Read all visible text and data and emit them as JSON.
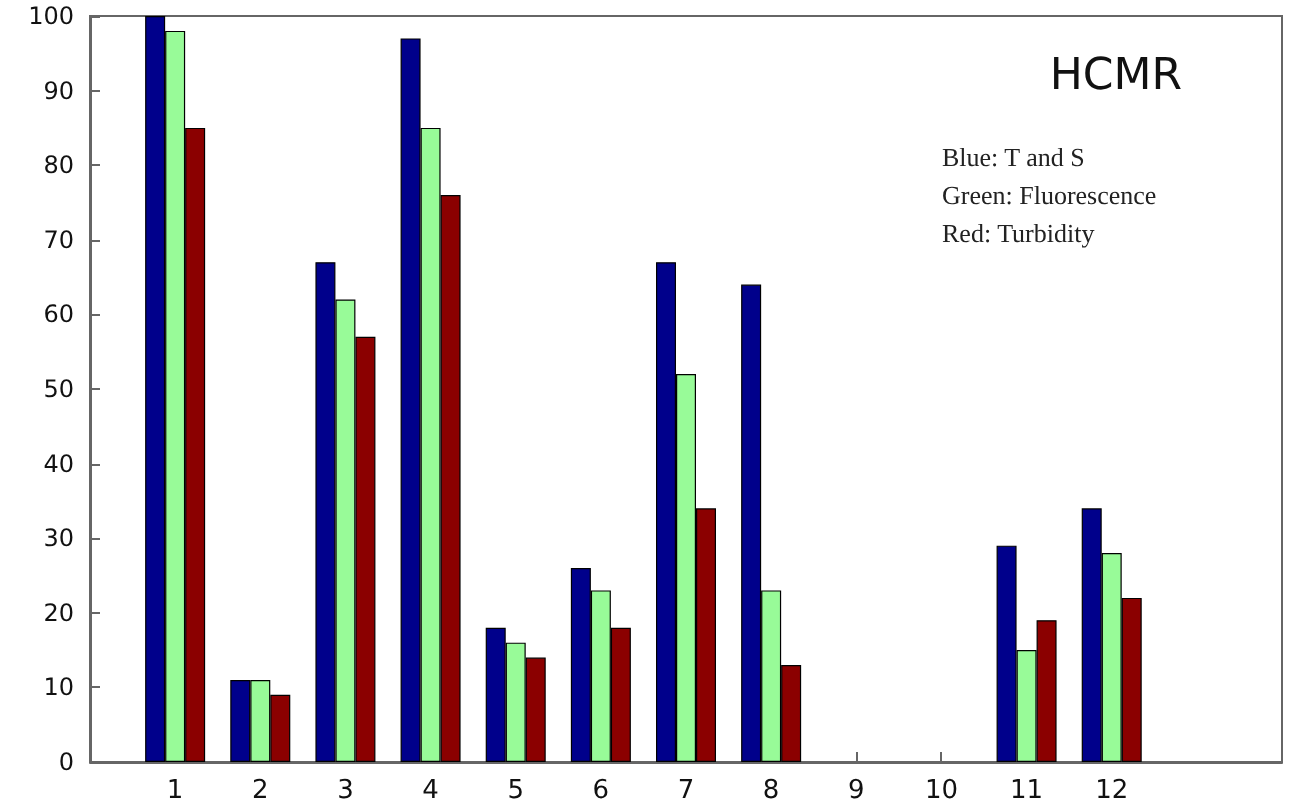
{
  "chart_data": {
    "type": "bar",
    "title": "HCMR",
    "annotations": [
      "Blue: T and S",
      "Green: Fluorescence",
      "Red: Turbidity"
    ],
    "x": [
      1,
      2,
      3,
      4,
      5,
      6,
      7,
      8,
      9,
      10,
      11,
      12
    ],
    "xlim": [
      0,
      14
    ],
    "xticks": [
      1,
      2,
      3,
      4,
      5,
      6,
      7,
      8,
      9,
      10,
      11,
      12
    ],
    "ylim": [
      0,
      100
    ],
    "yticks": [
      0,
      10,
      20,
      30,
      40,
      50,
      60,
      70,
      80,
      90,
      100
    ],
    "series": [
      {
        "color": "#00008b",
        "values": [
          100,
          11,
          67,
          97,
          18,
          26,
          67,
          64,
          null,
          null,
          29,
          34
        ]
      },
      {
        "color": "#98fb98",
        "values": [
          98,
          11,
          62,
          85,
          16,
          23,
          52,
          23,
          null,
          null,
          15,
          28
        ]
      },
      {
        "color": "#8b0000",
        "values": [
          85,
          9,
          57,
          76,
          14,
          18,
          34,
          13,
          null,
          null,
          19,
          22
        ]
      }
    ],
    "grid": false
  }
}
